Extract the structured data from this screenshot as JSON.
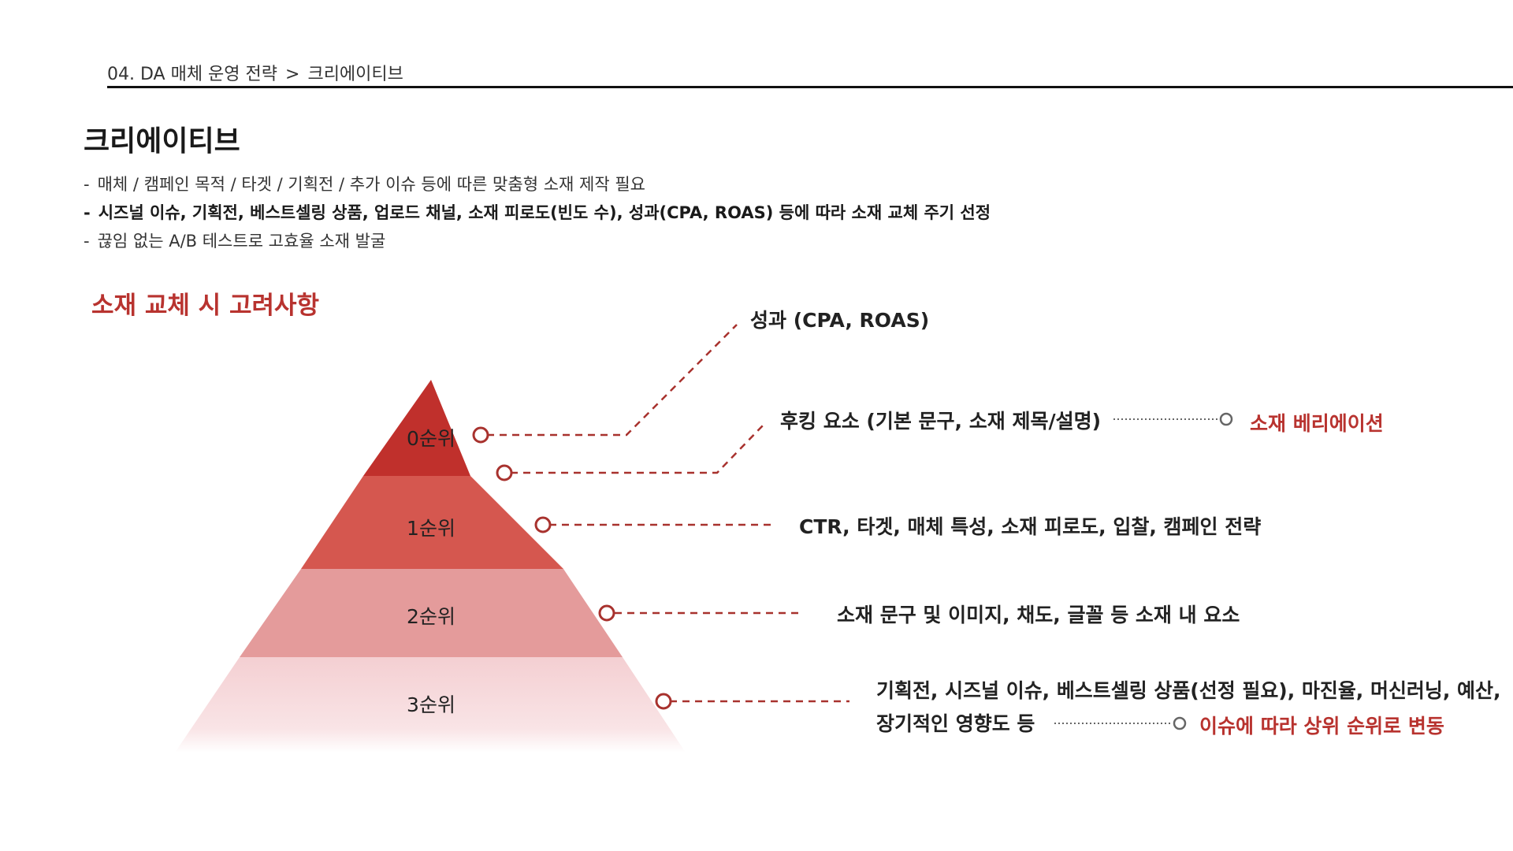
{
  "breadcrumb": {
    "section": "04. DA 매체 운영 전략",
    "separator": ">",
    "current": "크리에이티브"
  },
  "page_title": "크리에이티브",
  "bullets": [
    {
      "dash": "-",
      "text": "매체 / 캠페인 목적 / 타겟 / 기획전 / 추가 이슈 등에 따른 맞춤형 소재 제작 필요"
    },
    {
      "dash": "-",
      "text": "시즈널 이슈, 기획전, 베스트셀링 상품, 업로드 채널, 소재 피로도(빈도 수), 성과(CPA, ROAS) 등에 따라 소재 교체 주기 선정"
    },
    {
      "dash": "-",
      "text": "끊임 없는 A/B 테스트로 고효율 소재 발굴"
    }
  ],
  "section_title": "소재 교체 시 고려사항",
  "pyramid": {
    "tiers": [
      "0순위",
      "1순위",
      "2순위",
      "3순위"
    ],
    "colors": [
      "#c0302c",
      "#d5574f",
      "#e49b9b",
      "#f4d3d6"
    ]
  },
  "callouts": {
    "performance": "성과 (CPA, ROAS)",
    "hooking": "후킹 요소 (기본 문구, 소재 제목/설명)",
    "hooking_result": "소재 베리에이션",
    "tier1": "CTR, 타겟, 매체 특성, 소재 피로도, 입찰, 캠페인 전략",
    "tier2": "소재 문구 및 이미지, 채도, 글꼴 등 소재 내 요소",
    "tier3_line1": "기획전, 시즈널 이슈, 베스트셀링 상품(선정 필요), 마진율, 머신러닝, 예산,",
    "tier3_line2": "장기적인 영향도 등",
    "tier3_result": "이슈에 따라 상위 순위로 변동"
  },
  "colors": {
    "accent": "#b8332f",
    "connector": "#a8322e"
  }
}
